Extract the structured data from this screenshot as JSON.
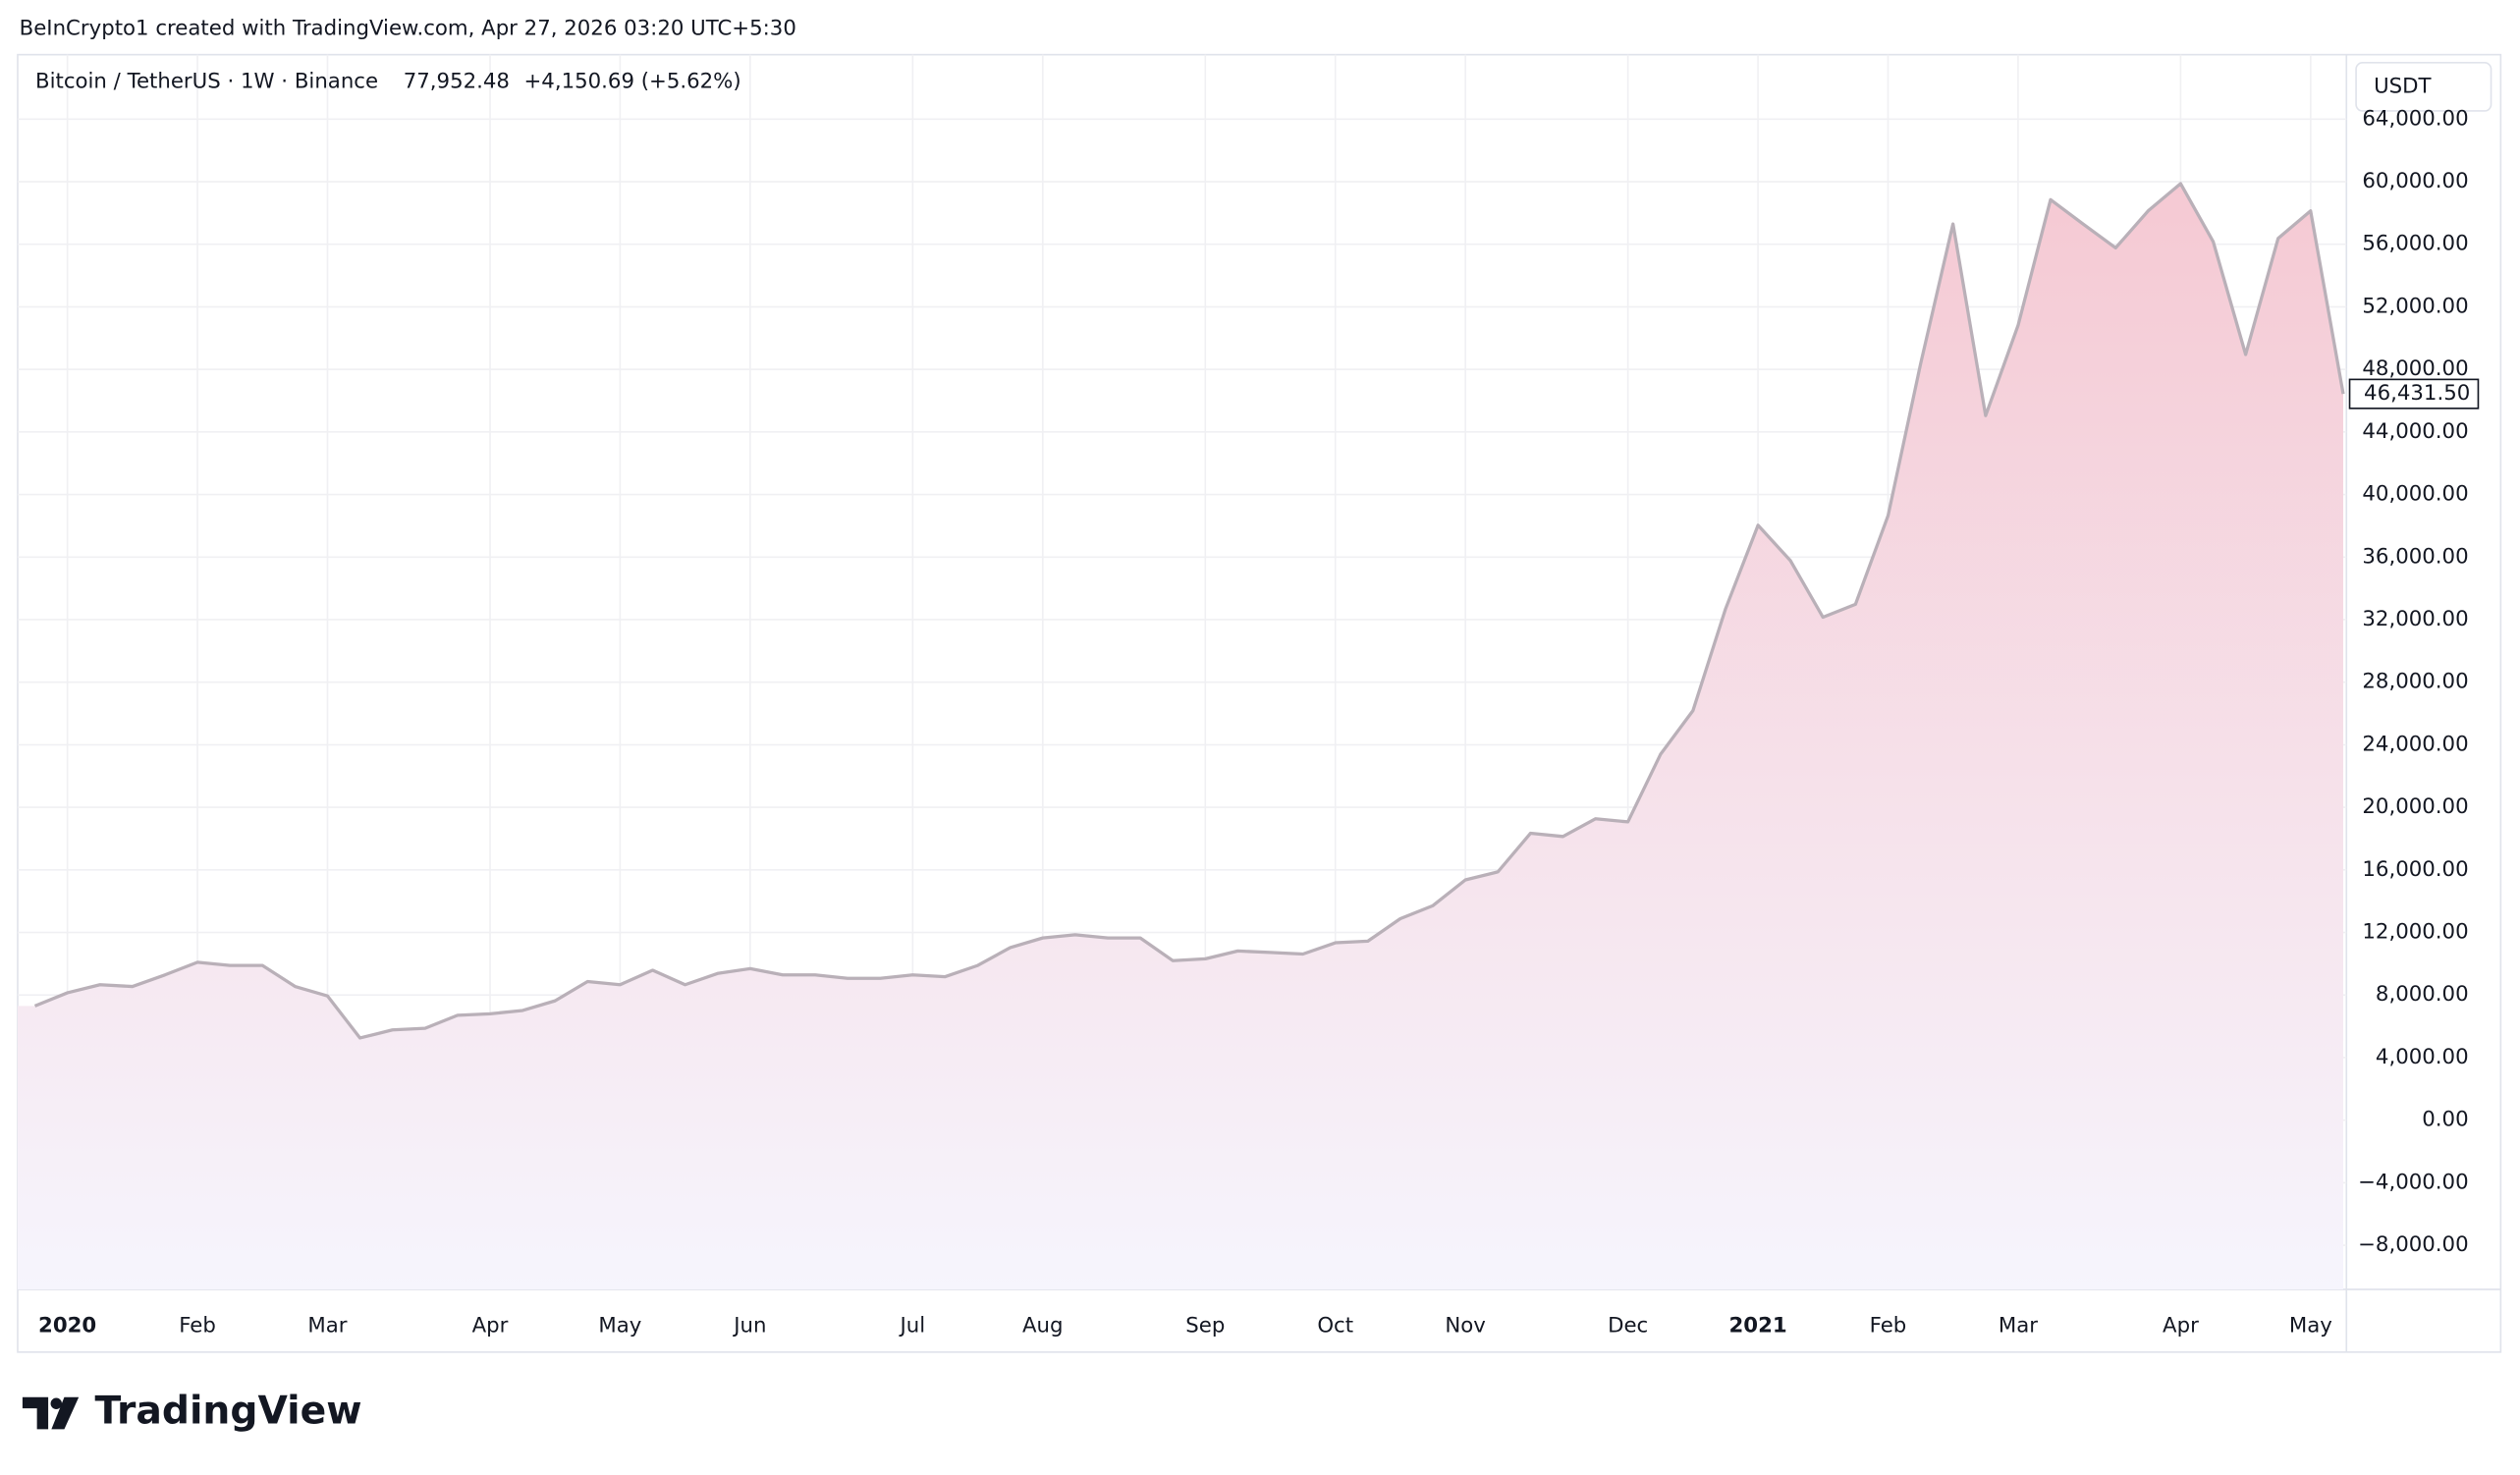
{
  "header": {
    "attribution": "BeInCrypto1 created with TradingView.com, Apr 27, 2026 03:20 UTC+5:30",
    "symbol": "Bitcoin / TetherUS · 1W · Binance",
    "price": "77,952.48",
    "change": "+4,150.69 (+5.62%)",
    "currency": "USDT",
    "logo": "TradingView"
  },
  "chart_data": {
    "type": "area",
    "values": [
      7300,
      8140,
      8660,
      8550,
      9280,
      10100,
      9890,
      9890,
      8550,
      7940,
      5260,
      5770,
      5870,
      6700,
      6800,
      7010,
      7630,
      8860,
      8660,
      9580,
      8660,
      9380,
      9690,
      9280,
      9280,
      9070,
      9070,
      9280,
      9170,
      9890,
      11030,
      11650,
      11850,
      11650,
      11650,
      10200,
      10310,
      10820,
      10720,
      10620,
      11340,
      11440,
      12880,
      13710,
      15360,
      15870,
      18340,
      18140,
      19270,
      19070,
      23390,
      26180,
      32670,
      38030,
      35760,
      32150,
      32980,
      38650,
      48330,
      57300,
      45040,
      50810,
      58850,
      57300,
      55760,
      58130,
      59880,
      56170,
      48950,
      56370,
      58130,
      46431.5
    ],
    "value_labels": [
      null,
      null,
      null,
      null,
      null,
      null,
      null,
      null,
      null,
      null,
      null,
      null,
      null,
      null,
      null,
      null,
      null,
      null,
      null,
      null,
      null,
      null,
      null,
      null,
      null,
      null,
      null,
      null,
      null,
      null,
      null,
      null,
      null,
      null,
      null,
      null,
      null,
      null,
      null,
      null,
      null,
      null,
      null,
      null,
      null,
      null,
      null,
      null,
      null,
      null,
      null,
      null,
      null,
      null,
      null,
      null,
      null,
      null,
      null,
      null,
      null,
      null,
      null,
      null,
      null,
      null,
      null,
      null,
      null,
      null,
      null,
      "46,431.50"
    ],
    "color": "#b9b0b8",
    "fill_top": "#f5c9d3",
    "fill_bottom": "#f6f5fd",
    "xlim": [
      -0.53,
      71.1
    ],
    "xticks": [
      {
        "value": 1,
        "label": "2020"
      },
      {
        "value": 5,
        "label": "Feb"
      },
      {
        "value": 9,
        "label": "Mar"
      },
      {
        "value": 14,
        "label": "Apr"
      },
      {
        "value": 18,
        "label": "May"
      },
      {
        "value": 22,
        "label": "Jun"
      },
      {
        "value": 27,
        "label": "Jul"
      },
      {
        "value": 31,
        "label": "Aug"
      },
      {
        "value": 36,
        "label": "Sep"
      },
      {
        "value": 40,
        "label": "Oct"
      },
      {
        "value": 44,
        "label": "Nov"
      },
      {
        "value": 49,
        "label": "Dec"
      },
      {
        "value": 53,
        "label": "2021"
      },
      {
        "value": 57,
        "label": "Feb"
      },
      {
        "value": 61,
        "label": "Mar"
      },
      {
        "value": 66,
        "label": "Apr"
      },
      {
        "value": 70,
        "label": "May"
      }
    ],
    "ylim": [
      -10820,
      68120
    ],
    "yticks": [
      {
        "value": -8000,
        "label": "−8,000.00"
      },
      {
        "value": -4000,
        "label": "−4,000.00"
      },
      {
        "value": 0,
        "label": "0.00"
      },
      {
        "value": 4000,
        "label": "4,000.00"
      },
      {
        "value": 8000,
        "label": "8,000.00"
      },
      {
        "value": 12000,
        "label": "12,000.00"
      },
      {
        "value": 16000,
        "label": "16,000.00"
      },
      {
        "value": 20000,
        "label": "20,000.00"
      },
      {
        "value": 24000,
        "label": "24,000.00"
      },
      {
        "value": 28000,
        "label": "28,000.00"
      },
      {
        "value": 32000,
        "label": "32,000.00"
      },
      {
        "value": 36000,
        "label": "36,000.00"
      },
      {
        "value": 40000,
        "label": "40,000.00"
      },
      {
        "value": 44000,
        "label": "44,000.00"
      },
      {
        "value": 48000,
        "label": "48,000.00"
      },
      {
        "value": 52000,
        "label": "52,000.00"
      },
      {
        "value": 56000,
        "label": "56,000.00"
      },
      {
        "value": 60000,
        "label": "60,000.00"
      },
      {
        "value": 64000,
        "label": "64,000.00"
      }
    ],
    "grid": true
  }
}
